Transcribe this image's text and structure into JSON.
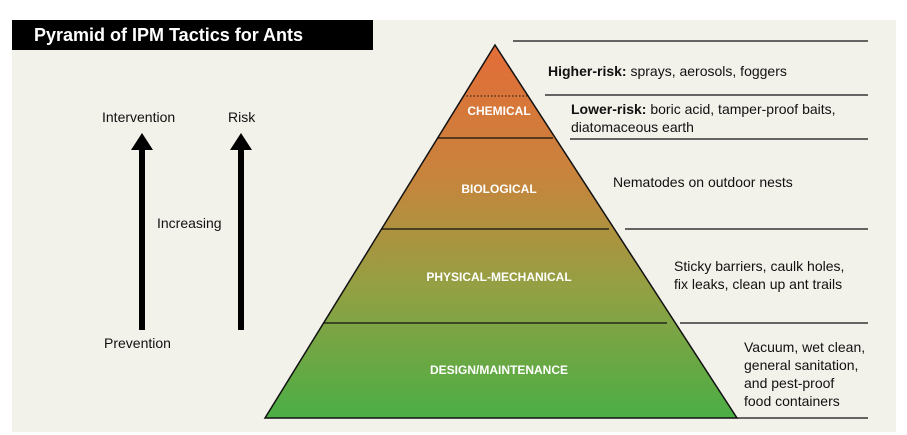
{
  "title": "Pyramid of IPM Tactics for Ants",
  "left": {
    "intervention": "Intervention",
    "risk": "Risk",
    "increasing": "Increasing",
    "prevention": "Prevention"
  },
  "tiers": [
    {
      "label": "CHEMICAL"
    },
    {
      "label": "BIOLOGICAL"
    },
    {
      "label": "PHYSICAL-MECHANICAL"
    },
    {
      "label": "DESIGN/MAINTENANCE"
    }
  ],
  "notes": {
    "higher_risk_label": "Higher-risk:",
    "higher_risk_text": " sprays, aerosols, foggers",
    "lower_risk_label": "Lower-risk:",
    "lower_risk_text": " boric acid, tamper-proof baits,",
    "lower_risk_text2": "diatomaceous earth",
    "biological": "Nematodes on outdoor nests",
    "physical_1": "Sticky barriers, caulk holes,",
    "physical_2": "fix leaks, clean up ant trails",
    "design_1": "Vacuum, wet clean,",
    "design_2": "general sanitation,",
    "design_3": "and pest-proof",
    "design_4": "food containers"
  },
  "colors": {
    "top": "#e2703a",
    "bottom": "#4caf45",
    "title_bg": "#000000",
    "panel": "#f2f1ea"
  }
}
